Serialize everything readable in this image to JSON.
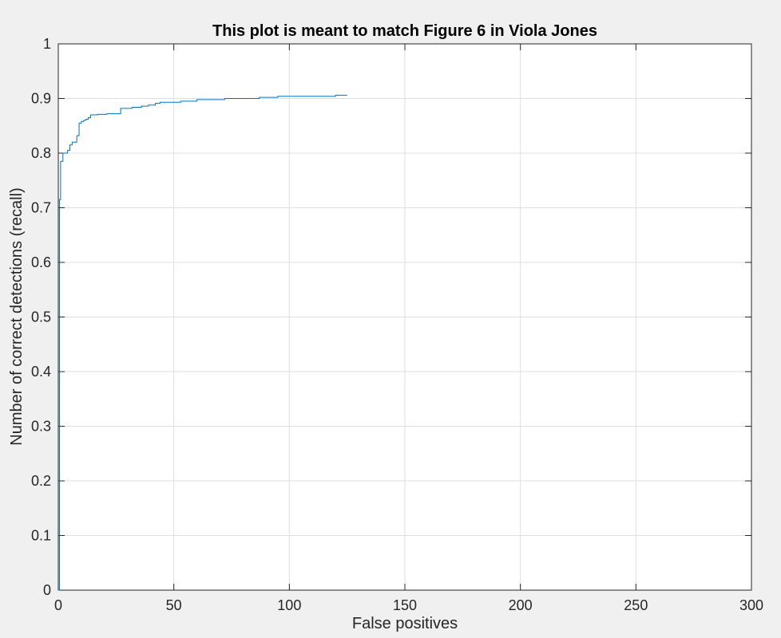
{
  "chart_data": {
    "type": "line",
    "title": "This plot is meant to match Figure 6 in Viola Jones",
    "xlabel": "False positives",
    "ylabel": "Number of correct detections (recall)",
    "xlim": [
      0,
      300
    ],
    "ylim": [
      0,
      1
    ],
    "xticks": [
      0,
      50,
      100,
      150,
      200,
      250,
      300
    ],
    "yticks": [
      0,
      0.1,
      0.2,
      0.3,
      0.4,
      0.5,
      0.6,
      0.7,
      0.8,
      0.9,
      1
    ],
    "xtick_labels": [
      "0",
      "50",
      "100",
      "150",
      "200",
      "250",
      "300"
    ],
    "ytick_labels": [
      "0",
      "0.1",
      "0.2",
      "0.3",
      "0.4",
      "0.5",
      "0.6",
      "0.7",
      "0.8",
      "0.9",
      "1"
    ],
    "grid": true,
    "step": true,
    "series": [
      {
        "color": "#0072bd",
        "x": [
          0,
          0.5,
          1,
          2,
          4,
          5,
          6,
          8,
          9,
          10,
          11,
          12,
          13,
          14,
          17,
          21,
          27,
          32,
          36,
          39,
          42,
          44,
          53,
          60,
          72,
          87,
          95,
          120,
          125
        ],
        "y": [
          0,
          0.715,
          0.785,
          0.8,
          0.805,
          0.815,
          0.82,
          0.832,
          0.855,
          0.858,
          0.86,
          0.862,
          0.865,
          0.87,
          0.871,
          0.872,
          0.882,
          0.884,
          0.886,
          0.888,
          0.891,
          0.893,
          0.895,
          0.898,
          0.9,
          0.902,
          0.904,
          0.906,
          0.906
        ]
      }
    ]
  }
}
